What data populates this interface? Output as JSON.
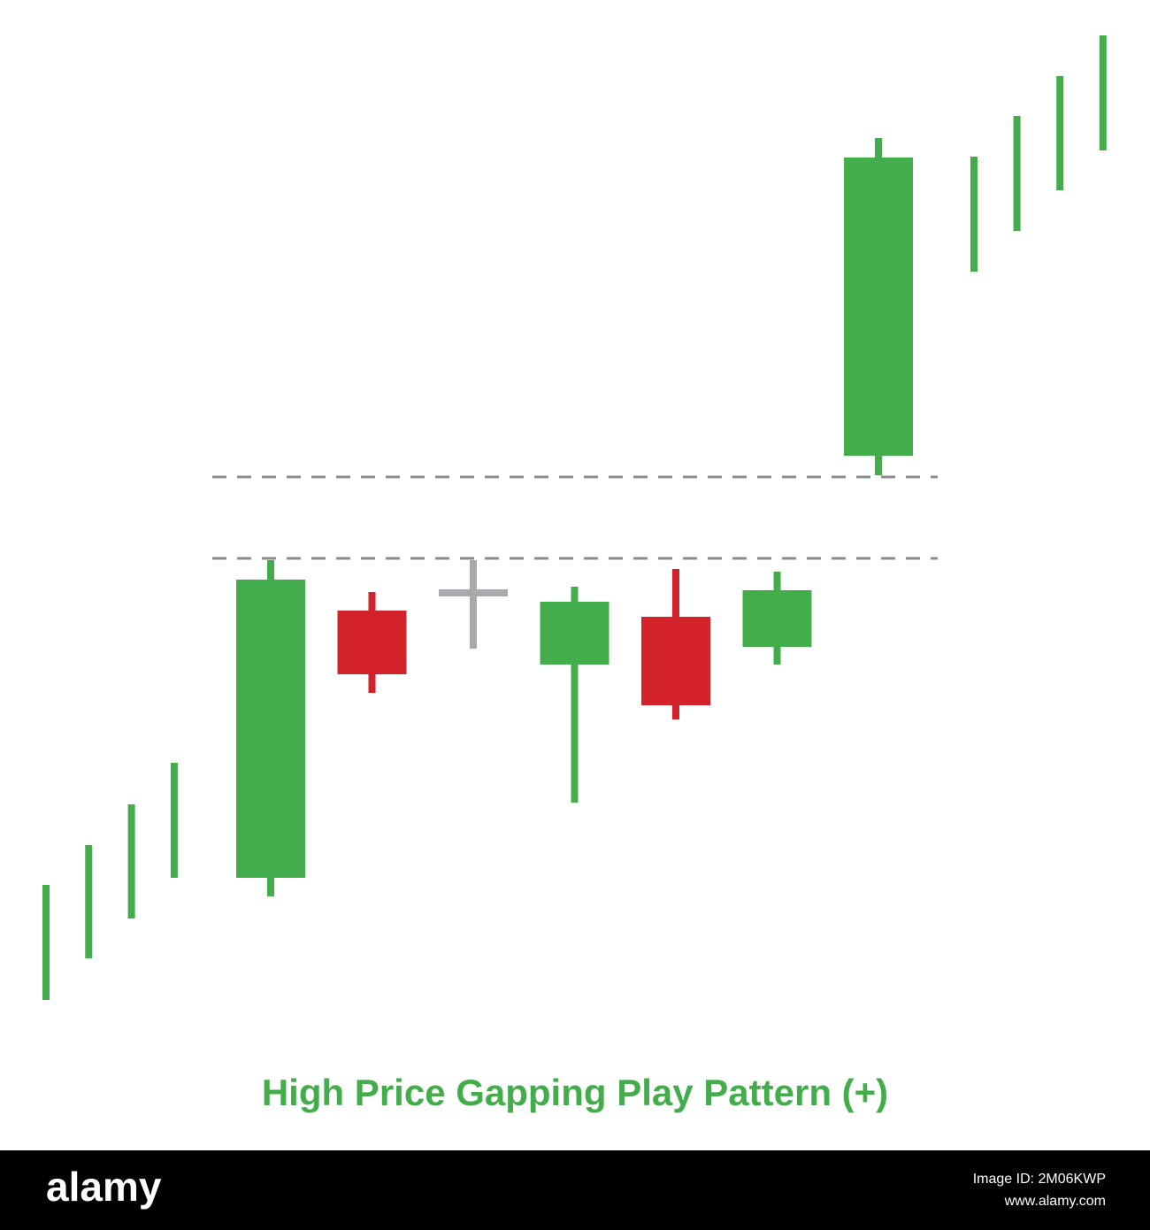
{
  "chart_data": {
    "type": "candlestick",
    "title": "High Price Gapping Play Pattern (+)",
    "title_color": "#43ad4c",
    "trend_before": {
      "color": "#43ad4c",
      "high": [
        20,
        24.5,
        29.1,
        33.8
      ],
      "low": [
        7,
        11.7,
        16.2,
        20.8
      ]
    },
    "candles": {
      "open": [
        20.8,
        51.0,
        53,
        44.9,
        50.3,
        46.9,
        68.5
      ],
      "close": [
        54.5,
        43.8,
        53,
        52.0,
        40.3,
        53.3,
        102.2
      ],
      "high": [
        56.7,
        53.1,
        56.7,
        53.7,
        55.7,
        55.4,
        104.4
      ],
      "low": [
        18.7,
        41.7,
        46.7,
        29.3,
        38.7,
        44.9,
        66.3
      ],
      "colors": [
        "#43ad4c",
        "#d2232a",
        "#a7a9ac",
        "#43ad4c",
        "#d2232a",
        "#43ad4c",
        "#43ad4c"
      ]
    },
    "trend_after": {
      "color": "#43ad4c",
      "high": [
        102.3,
        106.9,
        111.4,
        116
      ],
      "low": [
        89.3,
        93.9,
        98.5,
        103
      ]
    },
    "gap_lines": {
      "color": "#8c8c8c",
      "values": [
        66.1,
        56.9
      ]
    }
  },
  "watermark": {
    "brand": "alamy",
    "image_id": "Image ID: 2M06KWP",
    "url": "www.alamy.com"
  }
}
